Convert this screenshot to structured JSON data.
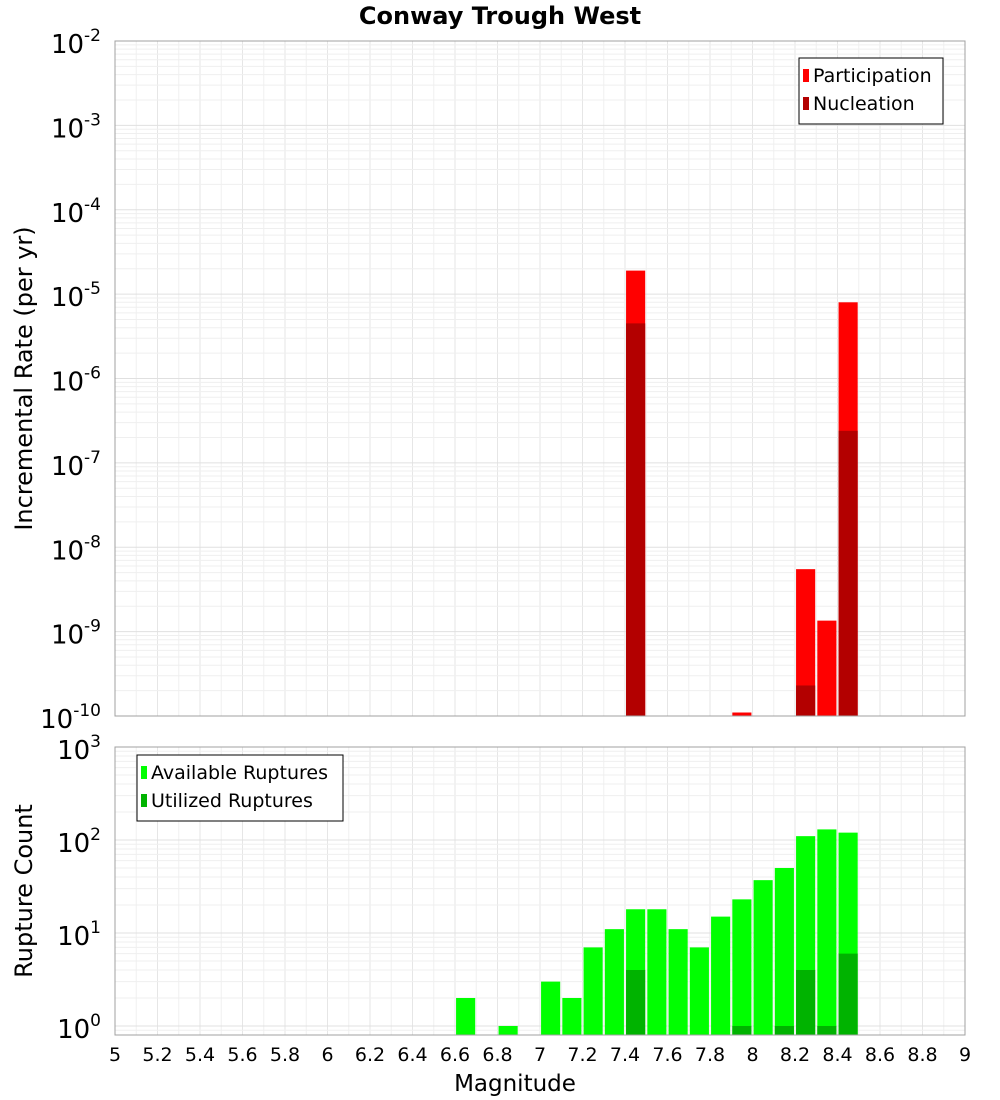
{
  "chart_data": [
    {
      "type": "bar",
      "title": "Conway Trough West",
      "xlabel": "",
      "ylabel": "Incremental Rate (per yr)",
      "yscale": "log",
      "xlim": [
        5,
        9
      ],
      "ylim": [
        1e-10,
        0.01
      ],
      "ytick_labels": [
        {
          "base": "10",
          "exp": "-10"
        },
        {
          "base": "10",
          "exp": "-9"
        },
        {
          "base": "10",
          "exp": "-8"
        },
        {
          "base": "10",
          "exp": "-7"
        },
        {
          "base": "10",
          "exp": "-6"
        },
        {
          "base": "10",
          "exp": "-5"
        },
        {
          "base": "10",
          "exp": "-4"
        },
        {
          "base": "10",
          "exp": "-3"
        },
        {
          "base": "10",
          "exp": "-2"
        }
      ],
      "grid": true,
      "legend_position": "top-right",
      "bar_width": 0.09,
      "series": [
        {
          "name": "Participation",
          "color": "#ff0000",
          "x": [
            7.45,
            7.95,
            8.25,
            8.35,
            8.45
          ],
          "values": [
            1.9e-05,
            1.1e-10,
            5.5e-09,
            1.35e-09,
            8e-06
          ]
        },
        {
          "name": "Nucleation",
          "color": "#b30000",
          "x": [
            7.45,
            8.25,
            8.45
          ],
          "values": [
            4.5e-06,
            2.3e-10,
            2.4e-07
          ]
        }
      ]
    },
    {
      "type": "bar",
      "title": "",
      "xlabel": "Magnitude",
      "ylabel": "Rupture Count",
      "yscale": "log",
      "xlim": [
        5,
        9
      ],
      "ylim": [
        0.8,
        1000
      ],
      "ytick_labels": [
        {
          "base": "10",
          "exp": "0"
        },
        {
          "base": "10",
          "exp": "1"
        },
        {
          "base": "10",
          "exp": "2"
        },
        {
          "base": "10",
          "exp": "3"
        }
      ],
      "xtick_labels": [
        "5",
        "5.2",
        "5.4",
        "5.6",
        "5.8",
        "6",
        "6.2",
        "6.4",
        "6.6",
        "6.8",
        "7",
        "7.2",
        "7.4",
        "7.6",
        "7.8",
        "8",
        "8.2",
        "8.4",
        "8.6",
        "8.8",
        "9"
      ],
      "grid": true,
      "legend_position": "top-left",
      "bar_width": 0.09,
      "series": [
        {
          "name": "Available Ruptures",
          "color": "#00ff00",
          "x": [
            6.65,
            6.85,
            7.05,
            7.15,
            7.25,
            7.35,
            7.45,
            7.55,
            7.65,
            7.75,
            7.85,
            7.95,
            8.05,
            8.15,
            8.25,
            8.35,
            8.45
          ],
          "values": [
            2,
            1,
            3,
            2,
            7,
            11,
            18,
            18,
            11,
            7,
            15,
            23,
            37,
            50,
            110,
            130,
            120
          ]
        },
        {
          "name": "Utilized Ruptures",
          "color": "#00b300",
          "x": [
            7.45,
            7.95,
            8.15,
            8.25,
            8.35,
            8.45
          ],
          "values": [
            4,
            1,
            1,
            4,
            1,
            6
          ]
        }
      ]
    }
  ]
}
